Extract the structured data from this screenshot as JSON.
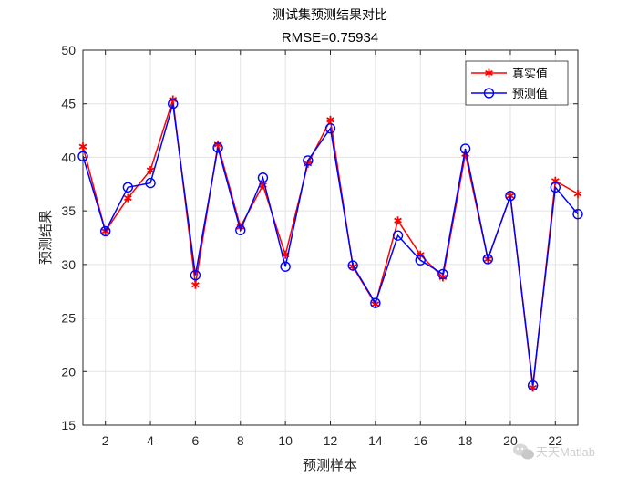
{
  "chart_data": {
    "type": "line",
    "title": "测试集预测结果对比",
    "subtitle": "RMSE=0.75934",
    "xlabel": "预测样本",
    "ylabel": "预测结果",
    "xlim": [
      1,
      23
    ],
    "ylim": [
      15,
      50
    ],
    "xticks": [
      2,
      4,
      6,
      8,
      10,
      12,
      14,
      16,
      18,
      20,
      22
    ],
    "yticks": [
      15,
      20,
      25,
      30,
      35,
      40,
      45,
      50
    ],
    "grid": true,
    "legend_position": "top-right",
    "x": [
      1,
      2,
      3,
      4,
      5,
      6,
      7,
      8,
      9,
      10,
      11,
      12,
      13,
      14,
      15,
      16,
      17,
      18,
      19,
      20,
      21,
      22,
      23
    ],
    "series": [
      {
        "name": "真实值",
        "color": "#ff0000",
        "marker": "asterisk",
        "values": [
          41.0,
          33.1,
          36.2,
          38.8,
          45.4,
          28.1,
          41.2,
          33.5,
          37.4,
          30.9,
          39.4,
          43.5,
          29.8,
          26.3,
          34.1,
          30.9,
          28.8,
          40.3,
          30.5,
          36.4,
          18.5,
          37.8,
          36.6
        ]
      },
      {
        "name": "预测值",
        "color": "#0000ff",
        "marker": "circle",
        "values": [
          40.1,
          33.1,
          37.2,
          37.6,
          45.0,
          29.0,
          40.9,
          33.2,
          38.1,
          29.8,
          39.7,
          42.7,
          29.9,
          26.4,
          32.7,
          30.4,
          29.1,
          40.8,
          30.5,
          36.4,
          18.7,
          37.2,
          34.7
        ]
      }
    ]
  },
  "watermark": {
    "text": "天天Matlab",
    "icon": "wechat-icon"
  }
}
